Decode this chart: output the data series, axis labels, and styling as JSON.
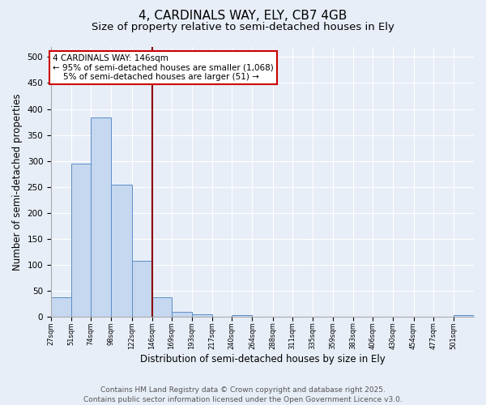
{
  "title_line1": "4, CARDINALS WAY, ELY, CB7 4GB",
  "title_line2": "Size of property relative to semi-detached houses in Ely",
  "xlabel": "Distribution of semi-detached houses by size in Ely",
  "ylabel": "Number of semi-detached properties",
  "bin_labels": [
    "27sqm",
    "51sqm",
    "74sqm",
    "98sqm",
    "122sqm",
    "146sqm",
    "169sqm",
    "193sqm",
    "217sqm",
    "240sqm",
    "264sqm",
    "288sqm",
    "311sqm",
    "335sqm",
    "359sqm",
    "383sqm",
    "406sqm",
    "430sqm",
    "454sqm",
    "477sqm",
    "501sqm"
  ],
  "bin_edges": [
    27,
    51,
    74,
    98,
    122,
    146,
    169,
    193,
    217,
    240,
    264,
    288,
    311,
    335,
    359,
    383,
    406,
    430,
    454,
    477,
    501
  ],
  "bar_heights": [
    37,
    295,
    383,
    255,
    108,
    37,
    10,
    5,
    0,
    4,
    0,
    0,
    0,
    0,
    0,
    0,
    0,
    0,
    0,
    0,
    3
  ],
  "bar_color": "#c5d8f0",
  "bar_edgecolor": "#5b8dc8",
  "vline_x": 146,
  "vline_color": "#8b0000",
  "annotation_text": "4 CARDINALS WAY: 146sqm\n← 95% of semi-detached houses are smaller (1,068)\n    5% of semi-detached houses are larger (51) →",
  "annotation_box_edgecolor": "#cc0000",
  "annotation_box_facecolor": "#ffffff",
  "ylim": [
    0,
    520
  ],
  "yticks": [
    0,
    50,
    100,
    150,
    200,
    250,
    300,
    350,
    400,
    450,
    500
  ],
  "background_color": "#e8eef8",
  "plot_bg_color": "#e8eef8",
  "footer_text": "Contains HM Land Registry data © Crown copyright and database right 2025.\nContains public sector information licensed under the Open Government Licence v3.0.",
  "title_fontsize": 11,
  "subtitle_fontsize": 9.5,
  "label_fontsize": 8.5,
  "tick_fontsize": 7.5,
  "footer_fontsize": 6.5,
  "annot_fontsize": 7.5
}
